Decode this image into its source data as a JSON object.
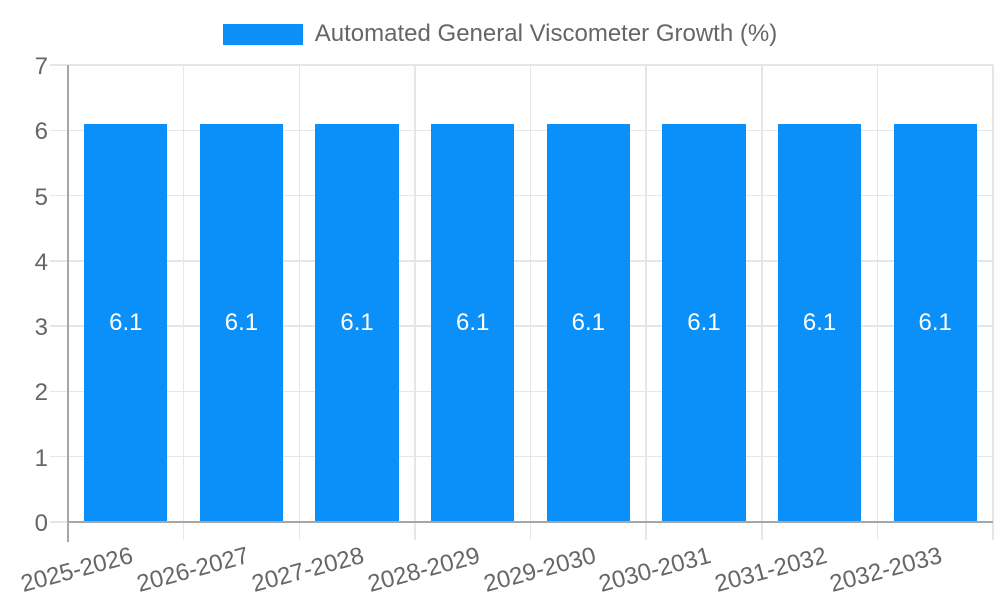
{
  "chart_data": {
    "type": "bar",
    "title": "Automated General Viscometer Growth (%)",
    "categories": [
      "2025-2026",
      "2026-2027",
      "2027-2028",
      "2028-2029",
      "2029-2030",
      "2030-2031",
      "2031-2032",
      "2032-2033"
    ],
    "values": [
      6.1,
      6.1,
      6.1,
      6.1,
      6.1,
      6.1,
      6.1,
      6.1
    ],
    "bar_labels": [
      "6.1",
      "6.1",
      "6.1",
      "6.1",
      "6.1",
      "6.1",
      "6.1",
      "6.1"
    ],
    "xlabel": "",
    "ylabel": "",
    "ylim": [
      0,
      7
    ],
    "y_ticks": [
      "0",
      "1",
      "2",
      "3",
      "4",
      "5",
      "6",
      "7"
    ],
    "grid": "on",
    "legend_position": "top",
    "colors": {
      "bar": "#0a90f8",
      "grid": "#e6e6e6",
      "axis": "#a6a6a6",
      "text": "#666666",
      "bar_label_text": "#ffffff",
      "background": "#ffffff"
    }
  }
}
